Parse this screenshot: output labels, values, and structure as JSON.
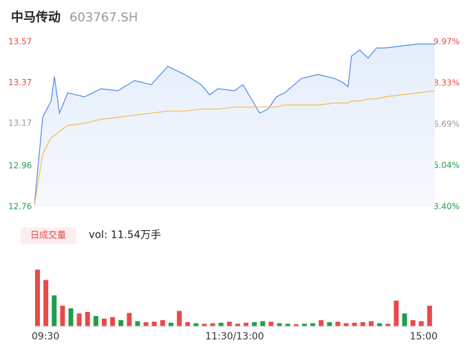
{
  "chart_data": [
    {
      "type": "line",
      "title": "中马传动",
      "subtitle": "603767.SH",
      "x": [
        0,
        5,
        10,
        12,
        15,
        20,
        30,
        40,
        50,
        60,
        70,
        80,
        90,
        100,
        105,
        110,
        120,
        125,
        130,
        135,
        140,
        145,
        150,
        160,
        170,
        180,
        185,
        188,
        190,
        195,
        200,
        205,
        210,
        220,
        230,
        240
      ],
      "xlim": [
        0,
        240
      ],
      "series": [
        {
          "color": "#4e86e8",
          "values": [
            12.77,
            13.2,
            13.28,
            13.4,
            13.22,
            13.32,
            13.3,
            13.34,
            13.33,
            13.38,
            13.36,
            13.45,
            13.41,
            13.36,
            13.31,
            13.34,
            13.33,
            13.36,
            13.29,
            13.22,
            13.24,
            13.3,
            13.32,
            13.39,
            13.41,
            13.39,
            13.37,
            13.35,
            13.5,
            13.53,
            13.49,
            13.54,
            13.54,
            13.55,
            13.56,
            13.56
          ]
        },
        {
          "color": "#f5b94a",
          "values": [
            12.77,
            13.02,
            13.1,
            13.11,
            13.13,
            13.16,
            13.17,
            13.19,
            13.2,
            13.21,
            13.22,
            13.23,
            13.23,
            13.24,
            13.24,
            13.24,
            13.25,
            13.25,
            13.25,
            13.25,
            13.25,
            13.25,
            13.26,
            13.26,
            13.26,
            13.27,
            13.27,
            13.27,
            13.28,
            13.28,
            13.29,
            13.29,
            13.3,
            13.31,
            13.32,
            13.33
          ]
        }
      ],
      "ylim": [
        12.76,
        13.57
      ],
      "yticks": [
        13.57,
        13.37,
        13.17,
        12.96,
        12.76
      ],
      "y2lim": [
        3.4,
        9.97
      ],
      "y2ticks": [
        {
          "value": 9.97,
          "label": "9.97%"
        },
        {
          "value": 8.33,
          "label": "8.33%"
        },
        {
          "value": 6.69,
          "label": "6.69%"
        },
        {
          "value": 5.04,
          "label": "5.04%"
        },
        {
          "value": 3.4,
          "label": "3.40%"
        }
      ]
    },
    {
      "type": "bar",
      "title": "日成交量",
      "annotation": "vol: 11.54万手",
      "x": [
        0,
        5,
        10,
        15,
        20,
        25,
        30,
        35,
        40,
        45,
        50,
        55,
        60,
        65,
        70,
        75,
        80,
        85,
        90,
        95,
        100,
        105,
        110,
        115,
        120,
        125,
        130,
        135,
        140,
        145,
        150,
        155,
        160,
        165,
        170,
        175,
        180,
        185,
        190,
        195,
        200,
        205,
        210,
        215,
        220,
        225,
        230,
        235
      ],
      "xlim": [
        0,
        240
      ],
      "xticks": [
        {
          "value": 0,
          "label": "09:30"
        },
        {
          "value": 120,
          "label": "11:30/13:00"
        },
        {
          "value": 240,
          "label": "15:00"
        }
      ],
      "ylim": [
        0,
        12000
      ],
      "series": [
        {
          "color": "#e84a4a",
          "values": [
            11000,
            9000,
            null,
            4000,
            null,
            2500,
            2800,
            null,
            1500,
            1800,
            null,
            2600,
            null,
            800,
            900,
            1200,
            null,
            3000,
            800,
            null,
            500,
            600,
            null,
            900,
            500,
            700,
            null,
            null,
            900,
            null,
            null,
            400,
            null,
            null,
            1200,
            null,
            900,
            600,
            700,
            800,
            1000,
            null,
            500,
            5000,
            null,
            1200,
            1000,
            4000
          ]
        },
        {
          "color": "#1f9e4a",
          "values": [
            null,
            null,
            6000,
            null,
            3500,
            null,
            null,
            2000,
            null,
            null,
            1200,
            null,
            1000,
            null,
            null,
            null,
            700,
            null,
            null,
            600,
            null,
            null,
            700,
            null,
            null,
            null,
            800,
            1000,
            null,
            600,
            500,
            null,
            500,
            600,
            null,
            800,
            null,
            null,
            null,
            null,
            null,
            600,
            null,
            null,
            2500,
            null,
            null,
            null
          ]
        }
      ]
    }
  ]
}
